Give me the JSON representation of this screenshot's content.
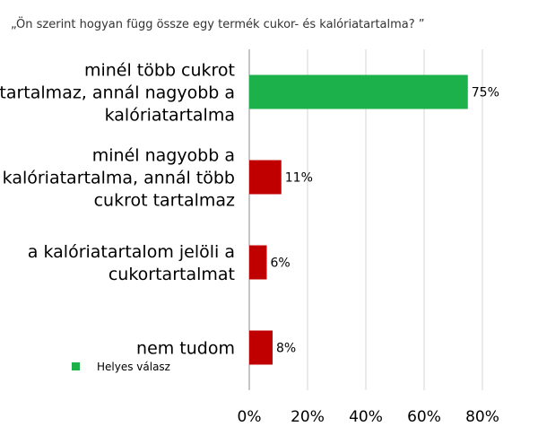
{
  "chart_data": {
    "type": "bar",
    "orientation": "horizontal",
    "title": "„Ön szerint hogyan függ össze egy termék cukor- és kalóriatartalma? ”",
    "categories": [
      [
        "minél több cukrot",
        "tartalmaz, annál nagyobb a",
        "kalóriatartalma"
      ],
      [
        "minél nagyobb a",
        "kalóriatartalma, annál több",
        "cukrot tartalmaz"
      ],
      [
        "a kalóriatartalom jelöli a",
        "cukortartalmat"
      ],
      [
        "nem tudom"
      ]
    ],
    "values": [
      75,
      11,
      6,
      8
    ],
    "value_labels": [
      "75%",
      "11%",
      "6%",
      "8%"
    ],
    "bar_colors": [
      "#1db14b",
      "#c00000",
      "#c00000",
      "#c00000"
    ],
    "xlim": [
      0,
      80
    ],
    "xticks": [
      0,
      20,
      40,
      60,
      80
    ],
    "xtick_labels": [
      "0%",
      "20%",
      "40%",
      "60%",
      "80%"
    ],
    "grid": "vertical",
    "legend": {
      "placement": "bottom-left",
      "entries": [
        {
          "label": "Helyes válasz",
          "color": "#1db14b"
        }
      ]
    }
  }
}
